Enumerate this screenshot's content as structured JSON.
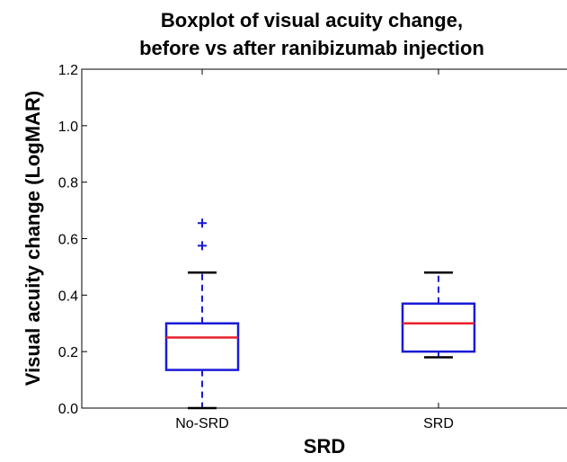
{
  "chart_data": {
    "type": "boxplot",
    "title": [
      "Boxplot of visual acuity change,",
      "before vs after ranibizumab injection"
    ],
    "xlabel": "SRD",
    "ylabel": "Visual acuity change (LogMAR)",
    "ylim": [
      0,
      1.2
    ],
    "yticks": [
      "0.0",
      "0.2",
      "0.4",
      "0.6",
      "0.8",
      "1.0",
      "1.2"
    ],
    "grid": false,
    "categories": [
      "No-SRD",
      "SRD"
    ],
    "boxes": [
      {
        "category": "No-SRD",
        "whisker_low": 0.0,
        "q1": 0.135,
        "median": 0.25,
        "q3": 0.3,
        "whisker_high": 0.48,
        "outliers": [
          0.575,
          0.655
        ]
      },
      {
        "category": "SRD",
        "whisker_low": 0.18,
        "q1": 0.2,
        "median": 0.3,
        "q3": 0.37,
        "whisker_high": 0.48,
        "outliers": []
      }
    ],
    "colors": {
      "box": "#1a1ad6",
      "median": "#e8202a",
      "whisker_cap": "#000000",
      "outlier": "#1a1ad6"
    }
  }
}
